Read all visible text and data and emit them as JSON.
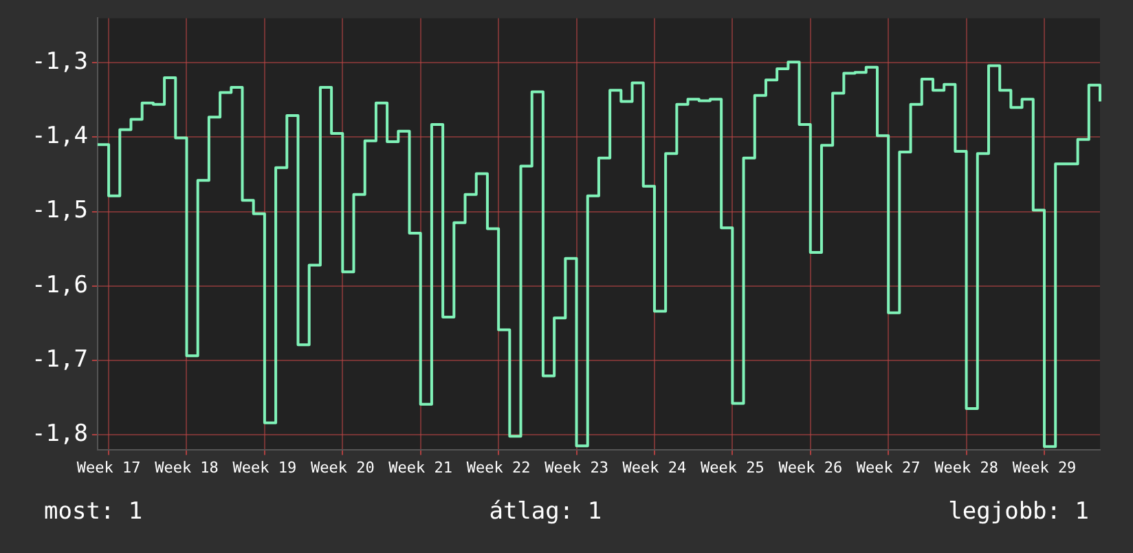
{
  "chart_data": {
    "type": "step",
    "color": "#80f2b8",
    "categories": [
      null,
      "Week 17",
      null,
      null,
      null,
      null,
      null,
      null,
      "Week 18",
      null,
      null,
      null,
      null,
      null,
      null,
      "Week 19",
      null,
      null,
      null,
      null,
      null,
      null,
      "Week 20",
      null,
      null,
      null,
      null,
      null,
      null,
      "Week 21",
      null,
      null,
      null,
      null,
      null,
      null,
      "Week 22",
      null,
      null,
      null,
      null,
      null,
      null,
      "Week 23",
      null,
      null,
      null,
      null,
      null,
      null,
      "Week 24",
      null,
      null,
      null,
      null,
      null,
      null,
      "Week 25",
      null,
      null,
      null,
      null,
      null,
      null,
      "Week 26",
      null,
      null,
      null,
      null,
      null,
      null,
      "Week 27",
      null,
      null,
      null,
      null,
      null,
      null,
      "Week 28",
      null,
      null,
      null,
      null,
      null,
      null,
      "Week 29",
      null,
      null,
      null,
      null,
      null
    ],
    "values": [
      -1.41,
      -1.479,
      -1.39,
      -1.376,
      -1.354,
      -1.356,
      -1.32,
      -1.401,
      -1.694,
      -1.458,
      -1.373,
      -1.34,
      -1.333,
      -1.485,
      -1.503,
      -1.784,
      -1.441,
      -1.371,
      -1.679,
      -1.572,
      -1.333,
      -1.395,
      -1.581,
      -1.477,
      -1.405,
      -1.354,
      -1.406,
      -1.392,
      -1.529,
      -1.759,
      -1.383,
      -1.642,
      -1.515,
      -1.477,
      -1.449,
      -1.523,
      -1.659,
      -1.802,
      -1.439,
      -1.339,
      -1.721,
      -1.643,
      -1.563,
      -1.815,
      -1.479,
      -1.428,
      -1.337,
      -1.352,
      -1.327,
      -1.466,
      -1.634,
      -1.422,
      -1.356,
      -1.349,
      -1.351,
      -1.349,
      -1.522,
      -1.758,
      -1.428,
      -1.344,
      -1.323,
      -1.308,
      -1.299,
      -1.383,
      -1.555,
      -1.411,
      -1.341,
      -1.314,
      -1.313,
      -1.306,
      -1.398,
      -1.636,
      -1.42,
      -1.356,
      -1.322,
      -1.337,
      -1.329,
      -1.419,
      -1.765,
      -1.422,
      -1.304,
      -1.337,
      -1.36,
      -1.349,
      -1.498,
      -1.816,
      -1.436,
      -1.436,
      -1.403,
      -1.33,
      -1.352
    ],
    "ylim": [
      -1.82,
      -1.24
    ],
    "yticks": [
      {
        "value": -1.8,
        "label": "-1,8"
      },
      {
        "value": -1.7,
        "label": "-1,7"
      },
      {
        "value": -1.6,
        "label": "-1,6"
      },
      {
        "value": -1.5,
        "label": "-1,5"
      },
      {
        "value": -1.4,
        "label": "-1,4"
      },
      {
        "value": -1.3,
        "label": "-1,3"
      }
    ],
    "grid": true,
    "legend": false,
    "marker": "none",
    "line_style": "solid",
    "annotations": [
      "most: 1",
      "átlag: 1",
      "legjobb: 1"
    ]
  }
}
